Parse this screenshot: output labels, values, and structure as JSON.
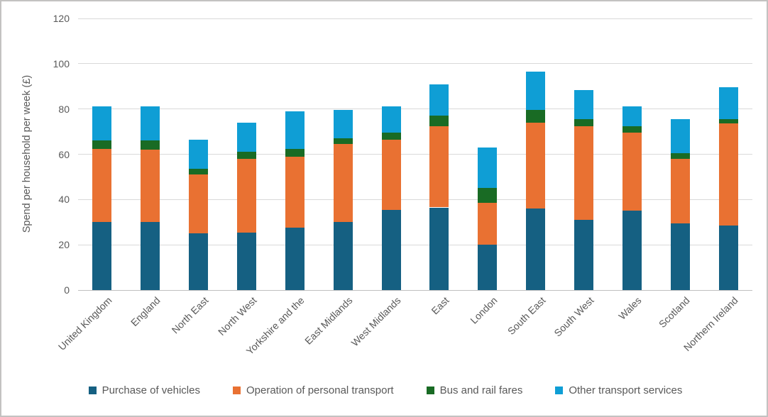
{
  "frame": {
    "background_color": "#FFFFFF",
    "border_color": "#C3C2C1"
  },
  "styles": {
    "text_color": "#595959",
    "gridline_color": "#D9D9D9",
    "axis_line_color": "#BFBFBF"
  },
  "chart_data": {
    "type": "bar",
    "stacked": true,
    "title": "",
    "xlabel": "",
    "ylabel": "Spend per household per week (£)",
    "ylim": [
      0,
      120
    ],
    "yticks": [
      0,
      20,
      40,
      60,
      80,
      100,
      120
    ],
    "grid": "horizontal",
    "legend_position": "bottom",
    "x_label_rotation_deg": 45,
    "categories": [
      "United Kingdom",
      "England",
      "North East",
      "North West",
      "Yorkshire and the",
      "East Midlands",
      "West Midlands",
      "East",
      "London",
      "South East",
      "South West",
      "Wales",
      "Scotland",
      "Northern Ireland"
    ],
    "series": [
      {
        "name": "Purchase of vehicles",
        "color": "#156082",
        "values": [
          30,
          30,
          25,
          25.5,
          27.5,
          30,
          35.5,
          36.5,
          20,
          36,
          31,
          35,
          29.5,
          28.5
        ]
      },
      {
        "name": "Operation of personal transport",
        "color": "#E97132",
        "values": [
          32.5,
          32,
          26,
          32.5,
          31.5,
          34.5,
          31,
          36,
          18.5,
          38,
          41.5,
          34.5,
          28.5,
          45
        ]
      },
      {
        "name": "Bus and rail fares",
        "color": "#196B24",
        "values": [
          3.5,
          4,
          2.5,
          3,
          3.5,
          2.5,
          3,
          4.5,
          6.5,
          5.5,
          3,
          3,
          2.5,
          2
        ]
      },
      {
        "name": "Other transport services",
        "color": "#0F9ED5",
        "values": [
          15,
          15,
          13,
          13,
          16.5,
          12.5,
          11.5,
          14,
          18,
          17,
          13,
          8.5,
          15,
          14
        ]
      }
    ]
  }
}
